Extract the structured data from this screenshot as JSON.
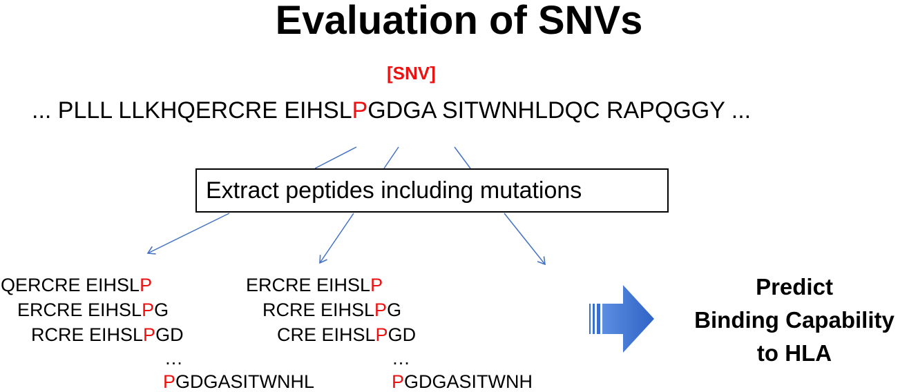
{
  "title": "Evaluation of SNVs",
  "snv_label": "[SNV]",
  "sequence": {
    "before": "... PLLL LLKHQERCRE EIHSL",
    "mutation": "P",
    "after": "GDGA SITWNHLDQC RAPQGGY ..."
  },
  "extract_label": "Extract peptides including mutations",
  "peptides_left": [
    {
      "pre": "QERCRE EIHSL",
      "mut": "P",
      "post": ""
    },
    {
      "pre": "ERCRE EIHSL",
      "mut": "P",
      "post": "G"
    },
    {
      "pre": "RCRE EIHSL",
      "mut": "P",
      "post": "GD"
    },
    {
      "pre": "…",
      "mut": "",
      "post": ""
    },
    {
      "pre": "",
      "mut": "P",
      "post": "GDGASITWNHL"
    }
  ],
  "peptides_right": [
    {
      "pre": "ERCRE EIHSL",
      "mut": "P",
      "post": ""
    },
    {
      "pre": "RCRE EIHSL",
      "mut": "P",
      "post": "G"
    },
    {
      "pre": "CRE EIHSL",
      "mut": "P",
      "post": "GD"
    },
    {
      "pre": "…",
      "mut": "",
      "post": ""
    },
    {
      "pre": "",
      "mut": "P",
      "post": "GDGASITWNH"
    }
  ],
  "predict": {
    "line1": "Predict",
    "line2": "Binding Capability",
    "line3": "to HLA"
  },
  "colors": {
    "mutation": "#ee1111",
    "arrow_line": "#4472c4",
    "block_arrow": "#3a6fd0"
  }
}
